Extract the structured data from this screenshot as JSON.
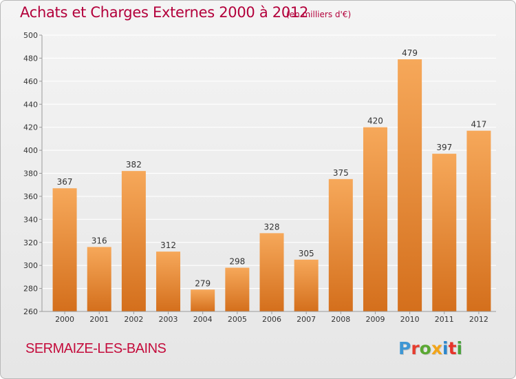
{
  "header": {
    "title": "Achats et Charges Externes 2000 à 2012",
    "subtitle": "(en milliers d'€)"
  },
  "footer": {
    "place": "SERMAIZE-LES-BAINS",
    "logo": "Proxiti",
    "logo_colors": [
      "#3f97d4",
      "#e63d2f",
      "#5aa832",
      "#f2a51a",
      "#2b86cc",
      "#e6342a",
      "#4aa33c"
    ]
  },
  "colors": {
    "bar_top": "#f6a85a",
    "bar_bottom": "#d46f1c",
    "text": "#b3003b",
    "axis_text": "#333333",
    "grid": "#ffffff"
  },
  "chart_data": {
    "type": "bar",
    "categories": [
      "2000",
      "2001",
      "2002",
      "2003",
      "2004",
      "2005",
      "2006",
      "2007",
      "2008",
      "2009",
      "2010",
      "2011",
      "2012"
    ],
    "values": [
      367,
      316,
      382,
      312,
      279,
      298,
      328,
      305,
      375,
      420,
      479,
      397,
      417
    ],
    "data_labels": [
      "367",
      "316",
      "382",
      "312",
      "279",
      "298",
      "328",
      "305",
      "375",
      "420",
      "479",
      "397",
      "417"
    ],
    "title": "Achats et Charges Externes 2000 à 2012",
    "subtitle": "(en milliers d'€)",
    "xlabel": "",
    "ylabel": "",
    "ylim": [
      260,
      500
    ],
    "yticks": [
      "260",
      "280",
      "300",
      "320",
      "340",
      "360",
      "380",
      "400",
      "420",
      "440",
      "460",
      "480",
      "500"
    ],
    "grid": true,
    "legend": "none"
  }
}
